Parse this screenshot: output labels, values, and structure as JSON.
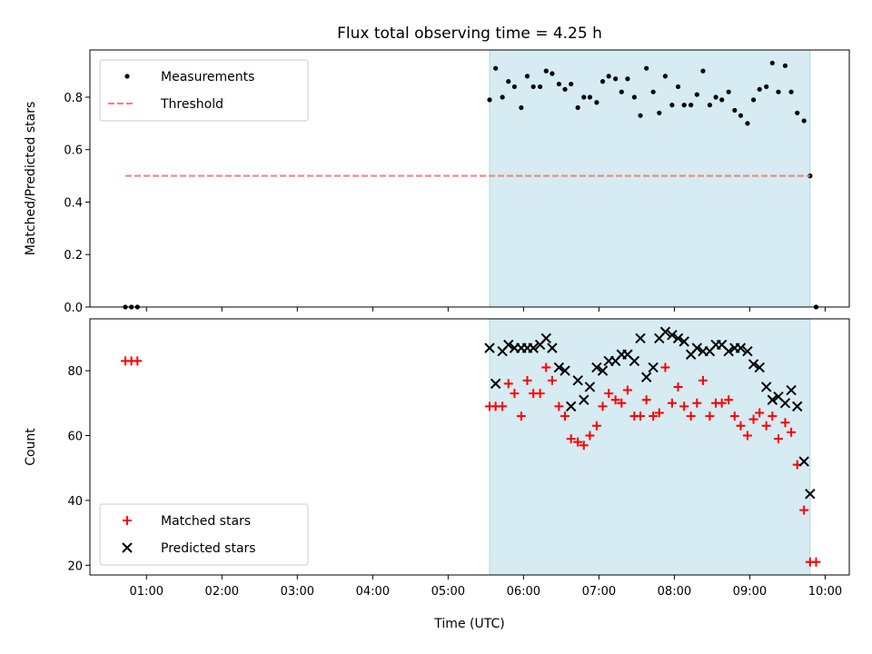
{
  "chart_data": {
    "title": "Flux total observing time = 4.25 h",
    "xlabel": "Time (UTC)",
    "x_ticks": [
      "01:00",
      "02:00",
      "03:00",
      "04:00",
      "05:00",
      "06:00",
      "07:00",
      "08:00",
      "09:00",
      "10:00"
    ],
    "x_range_hours": [
      0.25,
      10.32
    ],
    "highlight_span_hours": [
      5.55,
      9.8
    ],
    "highlight_color": "#add8e6",
    "panels": [
      {
        "type": "scatter",
        "ylabel": "Matched/Predicted stars",
        "ylim": [
          0,
          0.98
        ],
        "y_ticks": [
          "0.0",
          "0.2",
          "0.4",
          "0.6",
          "0.8"
        ],
        "y_tick_values": [
          0,
          0.2,
          0.4,
          0.6,
          0.8
        ],
        "legend_position": "top-left",
        "series": [
          {
            "name": "Measurements",
            "marker": "dot",
            "color": "#000000",
            "x": [
              0.72,
              0.8,
              0.88,
              5.55,
              5.63,
              5.72,
              5.8,
              5.88,
              5.97,
              6.05,
              6.13,
              6.22,
              6.3,
              6.38,
              6.47,
              6.55,
              6.63,
              6.72,
              6.8,
              6.88,
              6.97,
              7.05,
              7.13,
              7.22,
              7.3,
              7.38,
              7.47,
              7.55,
              7.63,
              7.72,
              7.8,
              7.88,
              7.97,
              8.05,
              8.13,
              8.22,
              8.3,
              8.38,
              8.47,
              8.55,
              8.63,
              8.72,
              8.8,
              8.88,
              8.97,
              9.05,
              9.13,
              9.22,
              9.3,
              9.38,
              9.47,
              9.55,
              9.63,
              9.72,
              9.8,
              9.88
            ],
            "y": [
              0.0,
              0.0,
              0.0,
              0.79,
              0.91,
              0.8,
              0.86,
              0.84,
              0.76,
              0.88,
              0.84,
              0.84,
              0.9,
              0.89,
              0.85,
              0.83,
              0.85,
              0.76,
              0.8,
              0.8,
              0.78,
              0.86,
              0.88,
              0.87,
              0.82,
              0.87,
              0.8,
              0.73,
              0.91,
              0.82,
              0.74,
              0.88,
              0.77,
              0.84,
              0.77,
              0.77,
              0.81,
              0.9,
              0.77,
              0.8,
              0.79,
              0.82,
              0.75,
              0.73,
              0.7,
              0.79,
              0.83,
              0.84,
              0.93,
              0.82,
              0.92,
              0.82,
              0.74,
              0.71,
              0.5,
              0.0
            ]
          },
          {
            "name": "Threshold",
            "marker": "dashed-line",
            "color": "#f08080",
            "x": [
              0.72,
              9.8
            ],
            "y": [
              0.5,
              0.5
            ]
          }
        ]
      },
      {
        "type": "scatter",
        "ylabel": "Count",
        "ylim": [
          17,
          96
        ],
        "y_ticks": [
          "20",
          "40",
          "60",
          "80"
        ],
        "y_tick_values": [
          20,
          40,
          60,
          80
        ],
        "legend_position": "bottom-left",
        "series": [
          {
            "name": "Matched stars",
            "marker": "plus",
            "color": "#ff0000",
            "x": [
              0.72,
              0.8,
              0.88,
              5.55,
              5.63,
              5.72,
              5.8,
              5.88,
              5.97,
              6.05,
              6.13,
              6.22,
              6.3,
              6.38,
              6.47,
              6.55,
              6.63,
              6.72,
              6.8,
              6.88,
              6.97,
              7.05,
              7.13,
              7.22,
              7.3,
              7.38,
              7.47,
              7.55,
              7.63,
              7.72,
              7.8,
              7.88,
              7.97,
              8.05,
              8.13,
              8.22,
              8.3,
              8.38,
              8.47,
              8.55,
              8.63,
              8.72,
              8.8,
              8.88,
              8.97,
              9.05,
              9.13,
              9.22,
              9.3,
              9.38,
              9.47,
              9.55,
              9.63,
              9.72,
              9.8,
              9.88
            ],
            "y": [
              83,
              83,
              83,
              69,
              69,
              69,
              76,
              73,
              66,
              77,
              73,
              73,
              81,
              77,
              69,
              66,
              59,
              58,
              57,
              60,
              63,
              69,
              73,
              71,
              70,
              74,
              66,
              66,
              71,
              66,
              67,
              81,
              70,
              75,
              69,
              66,
              70,
              77,
              66,
              70,
              70,
              71,
              66,
              63,
              60,
              65,
              67,
              63,
              66,
              59,
              64,
              61,
              51,
              37,
              21,
              21
            ]
          },
          {
            "name": "Predicted stars",
            "marker": "x",
            "color": "#000000",
            "x": [
              5.55,
              5.63,
              5.72,
              5.8,
              5.88,
              5.97,
              6.05,
              6.13,
              6.22,
              6.3,
              6.38,
              6.47,
              6.55,
              6.63,
              6.72,
              6.8,
              6.88,
              6.97,
              7.05,
              7.13,
              7.22,
              7.3,
              7.38,
              7.47,
              7.55,
              7.63,
              7.72,
              7.8,
              7.88,
              7.97,
              8.05,
              8.13,
              8.22,
              8.3,
              8.38,
              8.47,
              8.55,
              8.63,
              8.72,
              8.8,
              8.88,
              8.97,
              9.05,
              9.13,
              9.22,
              9.3,
              9.38,
              9.47,
              9.55,
              9.63,
              9.72,
              9.8
            ],
            "y": [
              87,
              76,
              86,
              88,
              87,
              87,
              87,
              87,
              88,
              90,
              87,
              81,
              80,
              69,
              77,
              71,
              75,
              81,
              80,
              83,
              83,
              85,
              85,
              83,
              90,
              78,
              81,
              90,
              92,
              91,
              90,
              89,
              85,
              87,
              86,
              86,
              88,
              88,
              86,
              87,
              87,
              86,
              82,
              81,
              75,
              71,
              72,
              70,
              74,
              69,
              52,
              42
            ]
          }
        ]
      }
    ]
  }
}
